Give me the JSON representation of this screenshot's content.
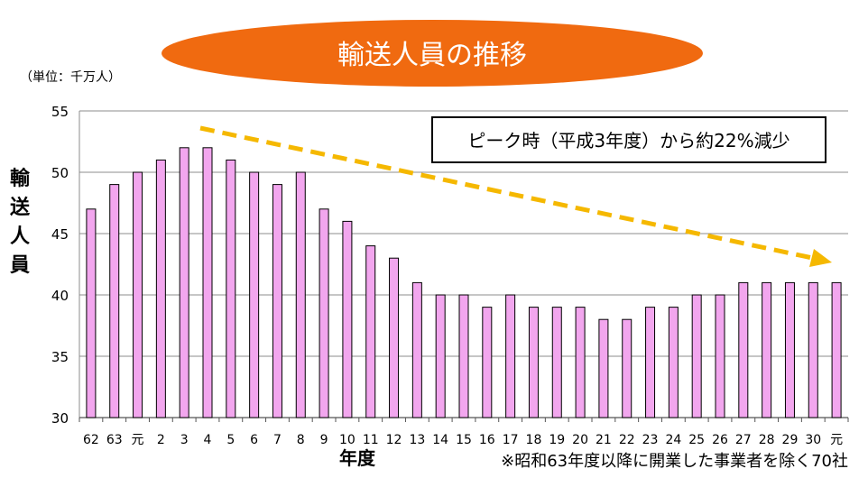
{
  "chart_data": {
    "type": "bar",
    "title": "輸送人員の推移",
    "unit_label": "（単位：千万人）",
    "ylabel": "輸送人員",
    "xlabel": "年度",
    "ylim": [
      30,
      55
    ],
    "yticks": [
      30,
      35,
      40,
      45,
      50,
      55
    ],
    "grid": true,
    "categories": [
      "62",
      "63",
      "元",
      "2",
      "3",
      "4",
      "5",
      "6",
      "7",
      "8",
      "9",
      "10",
      "11",
      "12",
      "13",
      "14",
      "15",
      "16",
      "17",
      "18",
      "19",
      "20",
      "21",
      "22",
      "23",
      "24",
      "25",
      "26",
      "27",
      "28",
      "29",
      "30",
      "元"
    ],
    "values": [
      47,
      49,
      50,
      51,
      52,
      52,
      51,
      50,
      49,
      50,
      47,
      46,
      44,
      43,
      41,
      40,
      40,
      39,
      40,
      39,
      39,
      39,
      38,
      38,
      39,
      39,
      40,
      40,
      41,
      41,
      41,
      41,
      41
    ],
    "bar_color": "#f2a6ee",
    "annotation": "ピーク時（平成3年度）から約22%減少",
    "footnote": "※昭和63年度以降に開業した事業者を除く70社",
    "title_color": "#f06a10",
    "trend_arrow_color": "#f5b800"
  }
}
